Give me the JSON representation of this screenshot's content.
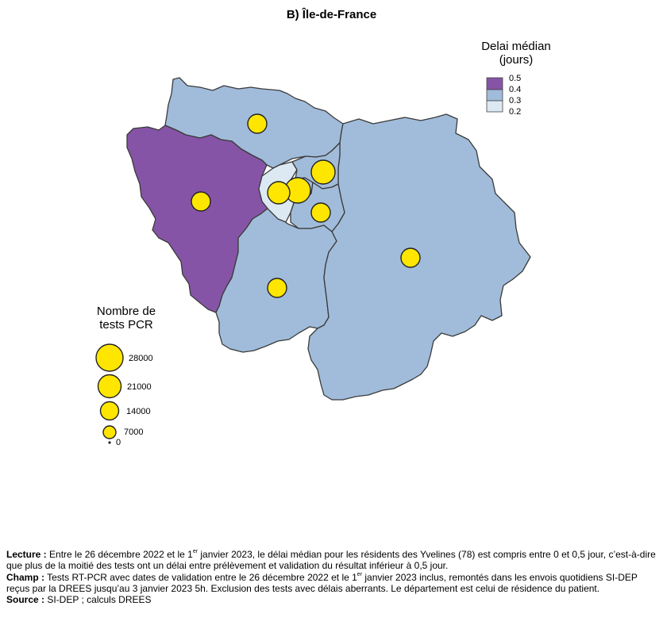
{
  "title": "B) Île-de-France",
  "choropleth_legend": {
    "title_line1": "Delai médian",
    "title_line2": "(jours)",
    "classes": [
      {
        "label": "0.5",
        "color": "#8654a6"
      },
      {
        "label": "0.4",
        "color": "#a1bcda"
      },
      {
        "label": "0.3",
        "color": "#dce9f3"
      },
      {
        "label": "0.2",
        "color": ""
      }
    ]
  },
  "bubble_legend": {
    "title_line1": "Nombre de",
    "title_line2": "tests PCR",
    "entries": [
      {
        "label": "28000",
        "value": 28000
      },
      {
        "label": "21000",
        "value": 21000
      },
      {
        "label": "14000",
        "value": 14000
      },
      {
        "label": "7000",
        "value": 7000
      },
      {
        "label": "0",
        "value": 0
      }
    ]
  },
  "departments": [
    {
      "id": "95",
      "delay_class": "0.4",
      "color": "#a1bcda"
    },
    {
      "id": "78",
      "delay_class": "0.5",
      "color": "#8654a6"
    },
    {
      "id": "77",
      "delay_class": "0.4",
      "color": "#a1bcda"
    },
    {
      "id": "91",
      "delay_class": "0.4",
      "color": "#a1bcda"
    },
    {
      "id": "92",
      "delay_class": "0.3",
      "color": "#dce9f3"
    },
    {
      "id": "75",
      "delay_class": "0.4",
      "color": "#a1bcda"
    },
    {
      "id": "93",
      "delay_class": "0.4",
      "color": "#a1bcda"
    },
    {
      "id": "94",
      "delay_class": "0.4",
      "color": "#a1bcda"
    }
  ],
  "notes": {
    "lecture_label": "Lecture :",
    "lecture_text_1": " Entre le 26 décembre 2022 et le 1",
    "lecture_sup": "er",
    "lecture_text_2": " janvier 2023, le délai médian pour les résidents des Yvelines (78) est compris entre 0 et 0,5 jour, c’est-à-dire que plus de la moitié des tests ont un délai entre prélèvement et validation du résultat inférieur à 0,5 jour.",
    "champ_label": "Champ :",
    "champ_text_1": " Tests RT-PCR avec dates de validation entre le 26 décembre 2022 et le 1",
    "champ_sup": "er",
    "champ_text_2": " janvier 2023 inclus, remontés dans les envois quotidiens SI-DEP reçus par la DREES jusqu’au 3 janvier 2023 5h. Exclusion des tests avec délais aberrants. Le département est celui de résidence du patient.",
    "source_label": "Source :",
    "source_text": " SI-DEP ; calculs DREES"
  }
}
